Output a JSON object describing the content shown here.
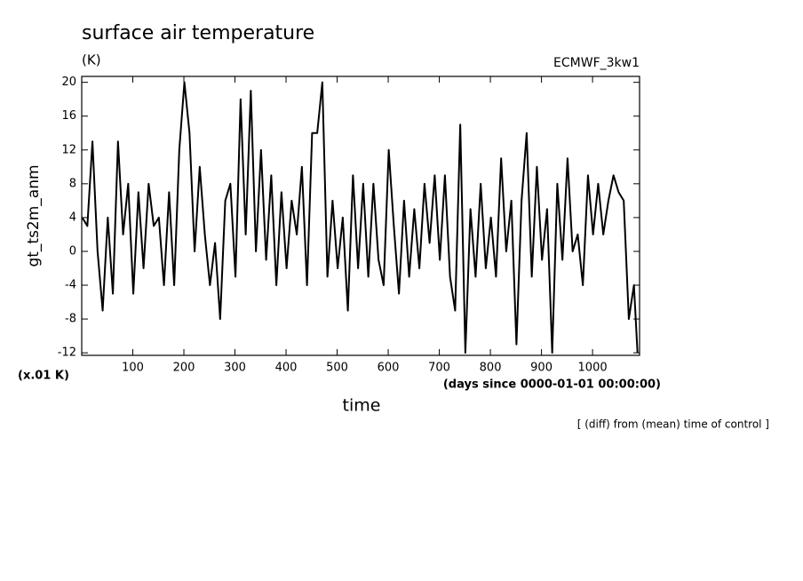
{
  "chart_data": {
    "type": "line",
    "title": "surface air temperature",
    "units": "(K)",
    "source": "ECMWF_3kw1",
    "ylabel": "gt_ts2m_anm",
    "yscale_note": "(x.01 K)",
    "xunits": "(days since 0000-01-01 00:00:00)",
    "xlabel": "time",
    "footnote": "[ (diff) from (mean) time of control ]",
    "color": "#000000",
    "xlim": [
      0,
      1092
    ],
    "ylim": [
      -12.3,
      20.7
    ],
    "xticks": [
      100,
      200,
      300,
      400,
      500,
      600,
      700,
      800,
      900,
      1000
    ],
    "yticks": [
      -12,
      -8,
      -4,
      0,
      4,
      8,
      12,
      16,
      20
    ],
    "x": [
      1,
      11,
      21,
      31,
      41,
      51,
      61,
      71,
      81,
      91,
      101,
      111,
      121,
      131,
      141,
      151,
      161,
      171,
      181,
      191,
      201,
      211,
      221,
      231,
      241,
      251,
      261,
      271,
      281,
      291,
      301,
      311,
      321,
      331,
      341,
      351,
      361,
      371,
      381,
      391,
      401,
      411,
      421,
      431,
      441,
      451,
      461,
      471,
      481,
      491,
      501,
      511,
      521,
      531,
      541,
      551,
      561,
      571,
      581,
      591,
      601,
      611,
      621,
      631,
      641,
      651,
      661,
      671,
      681,
      691,
      701,
      711,
      721,
      731,
      741,
      751,
      761,
      771,
      781,
      791,
      801,
      811,
      821,
      831,
      841,
      851,
      861,
      871,
      881,
      891,
      901,
      911,
      921,
      931,
      941,
      951,
      961,
      971,
      981,
      991,
      1001,
      1011,
      1021,
      1031,
      1041,
      1051,
      1061,
      1071,
      1081,
      1088
    ],
    "values": [
      4,
      3,
      13,
      0,
      -7,
      4,
      -5,
      13,
      2,
      8,
      -5,
      7,
      -2,
      8,
      3,
      4,
      -4,
      7,
      -4,
      12,
      20,
      14,
      0,
      10,
      2,
      -4,
      1,
      -8,
      6,
      8,
      -3,
      18,
      2,
      19,
      0,
      12,
      -1,
      9,
      -4,
      7,
      -2,
      6,
      2,
      10,
      -4,
      14,
      14,
      20,
      -3,
      6,
      -2,
      4,
      -7,
      9,
      -2,
      8,
      -3,
      8,
      -1,
      -4,
      12,
      3,
      -5,
      6,
      -3,
      5,
      -2,
      8,
      1,
      9,
      -1,
      9,
      -3,
      -7,
      15,
      -12,
      5,
      -3,
      8,
      -2,
      4,
      -3,
      11,
      0,
      6,
      -11,
      6,
      14,
      -3,
      10,
      -1,
      5,
      -12,
      8,
      -1,
      11,
      0,
      2,
      -4,
      9,
      2,
      8,
      2,
      6,
      9,
      7,
      6,
      -8,
      -4,
      -12
    ]
  }
}
